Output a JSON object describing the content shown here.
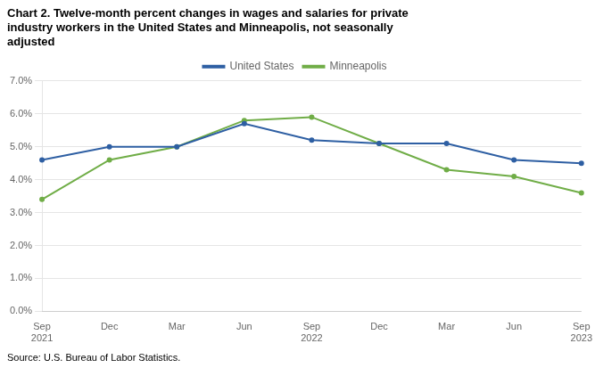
{
  "chart_data": {
    "type": "line",
    "title": "Chart 2. Twelve-month percent changes in wages and salaries for private\nindustry workers in the United States and Minneapolis, not seasonally\nadjusted",
    "source": "Source: U.S. Bureau of Labor Statistics.",
    "categories": [
      "Sep\n2021",
      "Dec",
      "Mar",
      "Jun",
      "Sep\n2022",
      "Dec",
      "Mar",
      "Jun",
      "Sep\n2023"
    ],
    "series": [
      {
        "name": "United States",
        "color": "#2e5fa3",
        "values": [
          4.6,
          5.0,
          5.0,
          5.7,
          5.2,
          5.1,
          5.1,
          4.6,
          4.5
        ]
      },
      {
        "name": "Minneapolis",
        "color": "#70ad47",
        "values": [
          3.4,
          4.6,
          5.0,
          5.8,
          5.9,
          5.1,
          4.3,
          4.1,
          3.6
        ]
      }
    ],
    "ylim": [
      0.0,
      7.0
    ],
    "yticks": [
      {
        "value": 0.0,
        "label": "0.0%"
      },
      {
        "value": 1.0,
        "label": "1.0%"
      },
      {
        "value": 2.0,
        "label": "2.0%"
      },
      {
        "value": 3.0,
        "label": "3.0%"
      },
      {
        "value": 4.0,
        "label": "4.0%"
      },
      {
        "value": 5.0,
        "label": "5.0%"
      },
      {
        "value": 6.0,
        "label": "6.0%"
      },
      {
        "value": 7.0,
        "label": "7.0%"
      }
    ],
    "grid": true,
    "legend": "top"
  }
}
